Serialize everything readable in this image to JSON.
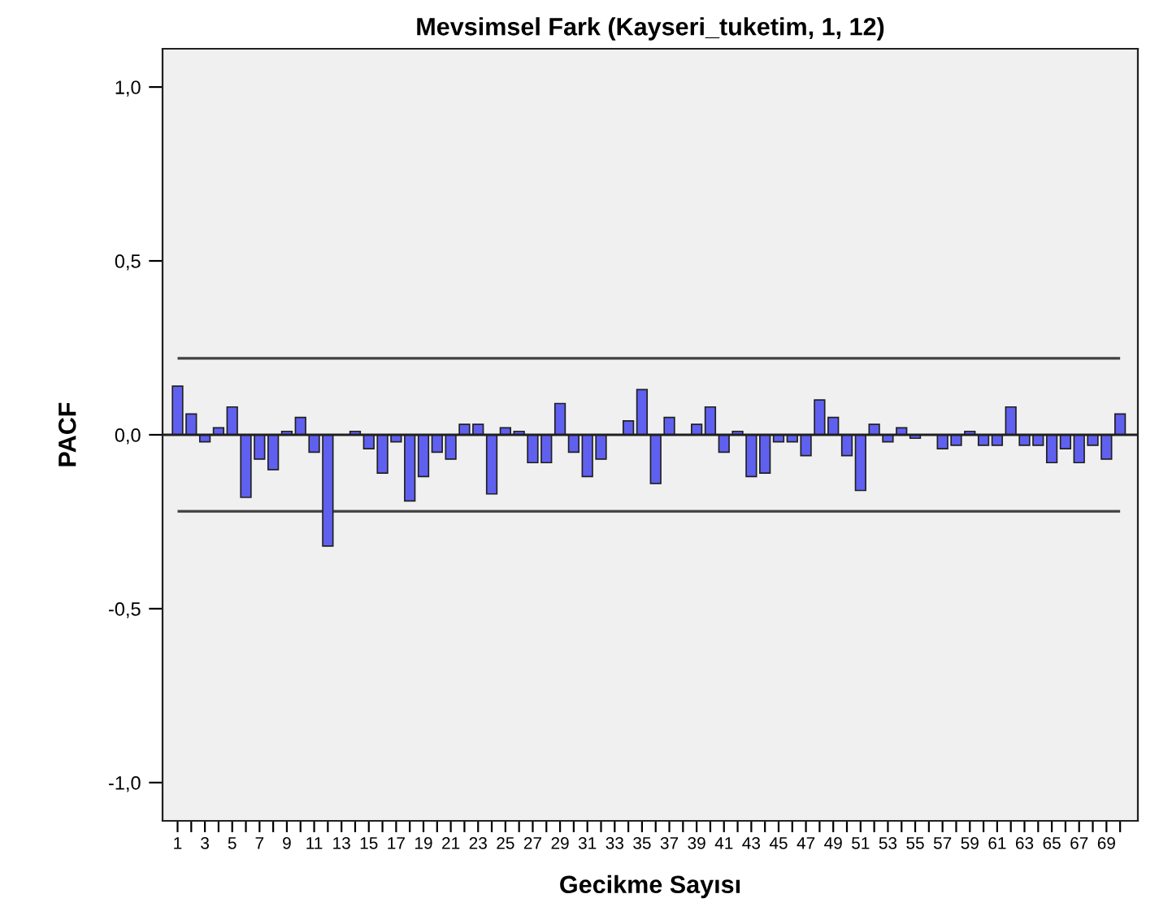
{
  "chart_data": {
    "type": "bar",
    "title": "Mevsimsel Fark (Kayseri_tuketim, 1, 12)",
    "xlabel": "Gecikme Sayısı",
    "ylabel": "PACF",
    "categories": [
      "1",
      null,
      "3",
      null,
      "5",
      null,
      "7",
      null,
      "9",
      null,
      "11",
      null,
      "13",
      null,
      "15",
      null,
      "17",
      null,
      "19",
      null,
      "21",
      null,
      "23",
      null,
      "25",
      null,
      "27",
      null,
      "29",
      null,
      "31",
      null,
      "33",
      null,
      "35",
      null,
      "37",
      null,
      "39",
      null,
      "41",
      null,
      "43",
      null,
      "45",
      null,
      "47",
      null,
      "49",
      null,
      "51",
      null,
      "53",
      null,
      "55",
      null,
      "57",
      null,
      "59",
      null,
      "61",
      null,
      "63",
      null,
      "65",
      null,
      "67",
      null,
      "69",
      null
    ],
    "values": [
      0.14,
      0.06,
      -0.02,
      0.02,
      0.08,
      -0.18,
      -0.07,
      -0.1,
      0.01,
      0.05,
      -0.05,
      -0.32,
      0.0,
      0.01,
      -0.04,
      -0.11,
      -0.02,
      -0.19,
      -0.12,
      -0.05,
      -0.07,
      0.03,
      0.03,
      -0.17,
      0.02,
      0.01,
      -0.08,
      -0.08,
      0.09,
      -0.05,
      -0.12,
      -0.07,
      0.0,
      0.04,
      0.13,
      -0.14,
      0.05,
      0.0,
      0.03,
      0.08,
      -0.05,
      0.01,
      -0.12,
      -0.11,
      -0.02,
      -0.02,
      -0.06,
      0.1,
      0.05,
      -0.06,
      -0.16,
      0.03,
      -0.02,
      0.02,
      -0.01,
      0.0,
      -0.04,
      -0.03,
      0.01,
      -0.03,
      -0.03,
      0.08,
      -0.03,
      -0.03,
      -0.08,
      -0.04,
      -0.08,
      -0.03,
      -0.07,
      0.06
    ],
    "color": "#6060f0",
    "ylim": [
      -1.11,
      1.11
    ],
    "yticks": [
      {
        "value": -1.0,
        "label": "-1,0"
      },
      {
        "value": -0.5,
        "label": "-0,5"
      },
      {
        "value": 0.0,
        "label": "0,0"
      },
      {
        "value": 0.5,
        "label": "0,5"
      },
      {
        "value": 1.0,
        "label": "1,0"
      }
    ],
    "ref_lines": [
      {
        "axis": "y",
        "value": 0.0,
        "color": "#202020"
      },
      {
        "axis": "y",
        "value": 0.22,
        "color": "#404040"
      },
      {
        "axis": "y",
        "value": -0.22,
        "color": "#404040"
      }
    ],
    "grid": false,
    "legend": false
  }
}
